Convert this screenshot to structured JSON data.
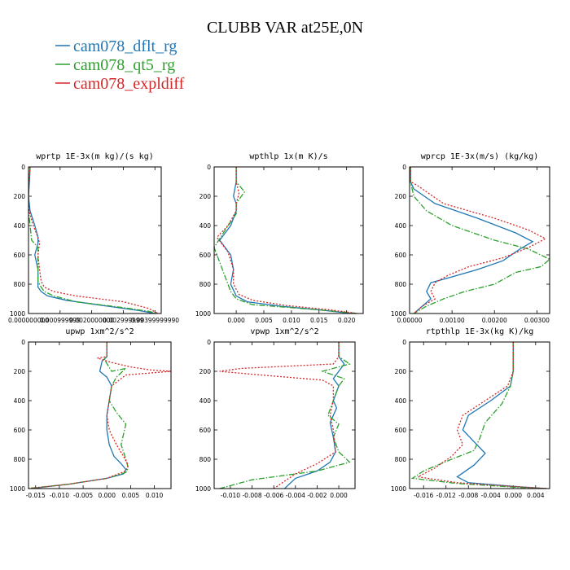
{
  "figure": {
    "title": "CLUBB VAR at25E,0N",
    "legend": [
      {
        "label": "cam078_dflt_rg",
        "color": "#1f77b4",
        "dash": "solid"
      },
      {
        "label": "cam078_qt5_rg",
        "color": "#2ca02c",
        "dash": "dashdot"
      },
      {
        "label": "cam078_expldiff",
        "color": "#d62728",
        "dash": "dotted"
      }
    ]
  },
  "chart_data": [
    {
      "type": "line",
      "title": "wprtp  1E-3x(m kg)/(s kg)",
      "xlim": [
        0,
        0.0042
      ],
      "ylim": [
        1000,
        0
      ],
      "xticks": [
        0,
        0.001,
        0.002,
        0.003,
        0.004
      ],
      "xtick_labels": [
        "0.000000000",
        "0.000999999",
        "0.0020000000",
        "0.002999999",
        "0.00399999990"
      ],
      "yticks": [
        0,
        200,
        400,
        600,
        800,
        1000
      ],
      "ytick_labels": [
        "0",
        "200",
        "400",
        "600",
        "800",
        "1000"
      ],
      "series": [
        {
          "name": "cam078_dflt_rg",
          "x": [
            5e-05,
            3e-05,
            0.0,
            5e-05,
            0.0002,
            0.0003,
            0.0003,
            0.0002,
            0.0003,
            0.0003,
            0.0003,
            0.0004,
            0.0006,
            0.0012,
            0.0025,
            0.0035,
            0.004
          ],
          "y": [
            0,
            100,
            200,
            300,
            400,
            480,
            520,
            600,
            700,
            780,
            820,
            850,
            880,
            910,
            950,
            980,
            1000
          ]
        },
        {
          "name": "cam078_qt5_rg",
          "x": [
            5e-05,
            0.0,
            0.0,
            0.0,
            0.0001,
            0.0003,
            0.0003,
            0.0003,
            0.0003,
            0.0004,
            0.0005,
            0.0008,
            0.0015,
            0.003,
            0.0038,
            0.0041
          ],
          "y": [
            0,
            150,
            200,
            300,
            500,
            550,
            600,
            700,
            780,
            820,
            850,
            880,
            920,
            960,
            985,
            1000
          ]
        },
        {
          "name": "cam078_expldiff",
          "x": [
            5e-05,
            2e-05,
            0.0,
            2e-05,
            0.00015,
            0.0003,
            0.00035,
            0.0003,
            0.00035,
            0.0004,
            0.0005,
            0.0008,
            0.0015,
            0.003,
            0.0038,
            0.0041
          ],
          "y": [
            0,
            100,
            200,
            300,
            400,
            480,
            520,
            600,
            700,
            780,
            820,
            850,
            880,
            920,
            965,
            1000
          ]
        }
      ]
    },
    {
      "type": "line",
      "title": "wpthlp  1x(m K)/s",
      "xlim": [
        -0.004,
        0.023
      ],
      "ylim": [
        1000,
        0
      ],
      "xticks": [
        0,
        0.005,
        0.01,
        0.015,
        0.02
      ],
      "xtick_labels": [
        "0.000",
        "0.005",
        "0.010",
        "0.015",
        "0.020"
      ],
      "yticks": [
        0,
        200,
        400,
        600,
        800,
        1000
      ],
      "ytick_labels": [
        "0",
        "200",
        "400",
        "600",
        "800",
        "1000"
      ],
      "series": [
        {
          "name": "cam078_dflt_rg",
          "x": [
            0.0,
            0.0,
            -0.0005,
            0.0,
            0.0,
            -0.001,
            -0.003,
            -0.001,
            -0.0005,
            -0.001,
            0.0,
            0.002,
            0.008,
            0.015,
            0.021
          ],
          "y": [
            0,
            100,
            200,
            250,
            300,
            400,
            500,
            600,
            700,
            800,
            880,
            920,
            950,
            975,
            1000
          ]
        },
        {
          "name": "cam078_qt5_rg",
          "x": [
            0.0,
            0.0,
            0.0015,
            0.0,
            0.0,
            -0.002,
            -0.004,
            -0.003,
            -0.002,
            -0.001,
            0.0,
            0.003,
            0.01,
            0.018,
            0.022
          ],
          "y": [
            0,
            100,
            170,
            250,
            320,
            430,
            550,
            650,
            750,
            850,
            900,
            940,
            960,
            985,
            1000
          ]
        },
        {
          "name": "cam078_expldiff",
          "x": [
            0.0,
            0.0,
            0.0005,
            0.0,
            0.0,
            -0.0015,
            -0.0035,
            -0.0015,
            -0.0005,
            -0.0005,
            0.0005,
            0.003,
            0.009,
            0.017,
            0.022
          ],
          "y": [
            0,
            100,
            180,
            250,
            300,
            400,
            480,
            580,
            700,
            800,
            870,
            910,
            945,
            975,
            1000
          ]
        }
      ]
    },
    {
      "type": "line",
      "title": "wprcp  1E-3x(m/s) (kg/kg)",
      "xlim": [
        0,
        0.0033
      ],
      "ylim": [
        1000,
        0
      ],
      "xticks": [
        0,
        0.001,
        0.002,
        0.003
      ],
      "xtick_labels": [
        "0.00000",
        "0.00100",
        "0.00200",
        "0.00300"
      ],
      "yticks": [
        0,
        200,
        400,
        600,
        800,
        1000
      ],
      "ytick_labels": [
        "0",
        "200",
        "400",
        "600",
        "800",
        "1000"
      ],
      "series": [
        {
          "name": "cam078_dflt_rg",
          "x": [
            2e-05,
            2e-05,
            0.0001,
            0.0006,
            0.0016,
            0.0025,
            0.0029,
            0.0026,
            0.0022,
            0.0016,
            0.001,
            0.0005,
            0.0004,
            0.0005,
            0.0003,
            0.0001
          ],
          "y": [
            0,
            100,
            150,
            250,
            350,
            450,
            510,
            560,
            640,
            700,
            750,
            790,
            850,
            900,
            950,
            1000
          ]
        },
        {
          "name": "cam078_qt5_rg",
          "x": [
            2e-05,
            2e-05,
            0.0001,
            0.0004,
            0.001,
            0.002,
            0.0028,
            0.0033,
            0.0031,
            0.0025,
            0.002,
            0.0013,
            0.0008,
            0.0004,
            0.0001
          ],
          "y": [
            0,
            100,
            200,
            300,
            400,
            500,
            560,
            630,
            680,
            720,
            800,
            850,
            900,
            950,
            1000
          ]
        },
        {
          "name": "cam078_expldiff",
          "x": [
            2e-05,
            2e-05,
            0.0002,
            0.0008,
            0.002,
            0.0028,
            0.0032,
            0.0028,
            0.0022,
            0.0014,
            0.0009,
            0.0006,
            0.0005,
            0.0006,
            0.0003,
            0.0001
          ],
          "y": [
            0,
            100,
            130,
            250,
            350,
            430,
            490,
            550,
            620,
            680,
            740,
            790,
            850,
            900,
            950,
            1000
          ]
        }
      ]
    },
    {
      "type": "line",
      "title": "upwp  1xm^2/s^2",
      "xlim": [
        -0.0165,
        0.0135
      ],
      "ylim": [
        1000,
        0
      ],
      "xticks": [
        -0.015,
        -0.01,
        -0.005,
        0,
        0.005,
        0.01
      ],
      "xtick_labels": [
        "-0.015",
        "-0.010",
        "-0.005",
        "0.000",
        "0.005",
        "0.010"
      ],
      "yticks": [
        0,
        200,
        400,
        600,
        800,
        1000
      ],
      "ytick_labels": [
        "0",
        "200",
        "400",
        "600",
        "800",
        "1000"
      ],
      "series": [
        {
          "name": "cam078_dflt_rg",
          "x": [
            0.0,
            0.0,
            -0.001,
            -0.0015,
            0.0,
            0.001,
            0.0005,
            0.0,
            0.0,
            0.0005,
            0.0015,
            0.003,
            0.004,
            0.0035,
            0.0,
            -0.008,
            -0.016
          ],
          "y": [
            0,
            100,
            130,
            200,
            240,
            300,
            400,
            500,
            600,
            700,
            780,
            830,
            870,
            900,
            930,
            970,
            1000
          ]
        },
        {
          "name": "cam078_qt5_rg",
          "x": [
            0.0,
            0.0,
            -0.0005,
            0.001,
            0.004,
            0.002,
            0.001,
            0.0005,
            0.002,
            0.004,
            0.003,
            0.004,
            0.0045,
            0.004,
            0.0,
            -0.008,
            -0.017
          ],
          "y": [
            0,
            100,
            120,
            200,
            180,
            240,
            300,
            400,
            480,
            560,
            700,
            800,
            860,
            890,
            930,
            970,
            1000
          ]
        },
        {
          "name": "cam078_expldiff",
          "x": [
            0.0,
            0.0,
            -0.002,
            0.001,
            0.005,
            0.009,
            0.0135,
            0.004,
            0.001,
            0.0005,
            0.0,
            0.0005,
            0.002,
            0.0035,
            0.0045,
            0.004,
            0.0,
            -0.008,
            -0.0165
          ],
          "y": [
            0,
            100,
            110,
            140,
            170,
            190,
            200,
            225,
            300,
            400,
            500,
            600,
            700,
            780,
            840,
            880,
            930,
            970,
            1000
          ]
        }
      ]
    },
    {
      "type": "line",
      "title": "vpwp  1xm^2/s^2",
      "xlim": [
        -0.0115,
        0.0015
      ],
      "ylim": [
        1000,
        0
      ],
      "xticks": [
        -0.01,
        -0.008,
        -0.006,
        -0.004,
        -0.002,
        0
      ],
      "xtick_labels": [
        "-0.010",
        "-0.008",
        "-0.006",
        "-0.004",
        "-0.002",
        "0.000"
      ],
      "yticks": [
        0,
        200,
        400,
        600,
        800,
        1000
      ],
      "ytick_labels": [
        "0",
        "200",
        "400",
        "600",
        "800",
        "1000"
      ],
      "series": [
        {
          "name": "cam078_dflt_rg",
          "x": [
            0.0,
            0.0,
            0.0005,
            0.0,
            -0.0005,
            0.0,
            -0.0005,
            -0.0002,
            -0.0008,
            -0.0005,
            -0.0003,
            -0.0008,
            -0.002,
            -0.004,
            -0.005
          ],
          "y": [
            0,
            100,
            150,
            200,
            250,
            300,
            400,
            450,
            550,
            650,
            750,
            820,
            880,
            930,
            1000
          ]
        },
        {
          "name": "cam078_qt5_rg",
          "x": [
            0.0,
            0.0,
            0.001,
            -0.0015,
            0.0005,
            0.0,
            -0.0005,
            -0.001,
            0.0,
            -0.0005,
            0.0,
            0.001,
            -0.002,
            -0.008,
            -0.011
          ],
          "y": [
            0,
            100,
            150,
            200,
            250,
            300,
            400,
            500,
            560,
            650,
            750,
            820,
            880,
            940,
            1000
          ]
        },
        {
          "name": "cam078_expldiff",
          "x": [
            0.0,
            0.0,
            -0.0005,
            -0.009,
            -0.011,
            -0.008,
            -0.0015,
            -0.0005,
            -0.0005,
            -0.0008,
            -0.0005,
            -0.0003,
            -0.002,
            -0.004,
            -0.006
          ],
          "y": [
            0,
            100,
            150,
            180,
            200,
            220,
            260,
            300,
            400,
            500,
            600,
            750,
            830,
            900,
            1000
          ]
        }
      ]
    },
    {
      "type": "line",
      "title": "rtpthlp  1E-3x(kg K)/kg",
      "xlim": [
        -0.0185,
        0.0065
      ],
      "ylim": [
        1000,
        0
      ],
      "xticks": [
        -0.016,
        -0.012,
        -0.008,
        -0.004,
        0,
        0.004
      ],
      "xtick_labels": [
        "-0.016",
        "-0.012",
        "-0.008",
        "-0.004",
        "0.000",
        "0.004"
      ],
      "yticks": [
        0,
        200,
        400,
        600,
        800,
        1000
      ],
      "ytick_labels": [
        "0",
        "200",
        "400",
        "600",
        "800",
        "1000"
      ],
      "series": [
        {
          "name": "cam078_dflt_rg",
          "x": [
            0.0,
            0.0,
            -0.0005,
            -0.004,
            -0.008,
            -0.009,
            -0.007,
            -0.005,
            -0.007,
            -0.01,
            -0.008,
            0.0,
            0.006
          ],
          "y": [
            0,
            200,
            300,
            400,
            500,
            600,
            680,
            760,
            840,
            920,
            960,
            985,
            1000
          ]
        },
        {
          "name": "cam078_qt5_rg",
          "x": [
            0.0,
            0.0,
            -0.0005,
            -0.002,
            -0.005,
            -0.006,
            -0.007,
            -0.011,
            -0.016,
            -0.018,
            -0.01,
            0.0,
            0.006
          ],
          "y": [
            0,
            200,
            300,
            420,
            550,
            660,
            740,
            800,
            880,
            930,
            965,
            990,
            1000
          ]
        },
        {
          "name": "cam078_expldiff",
          "x": [
            0.0,
            0.0,
            -0.001,
            -0.005,
            -0.009,
            -0.01,
            -0.009,
            -0.011,
            -0.014,
            -0.017,
            -0.01,
            0.0,
            0.006
          ],
          "y": [
            0,
            200,
            300,
            400,
            500,
            600,
            700,
            780,
            860,
            920,
            960,
            985,
            1000
          ]
        }
      ]
    }
  ]
}
